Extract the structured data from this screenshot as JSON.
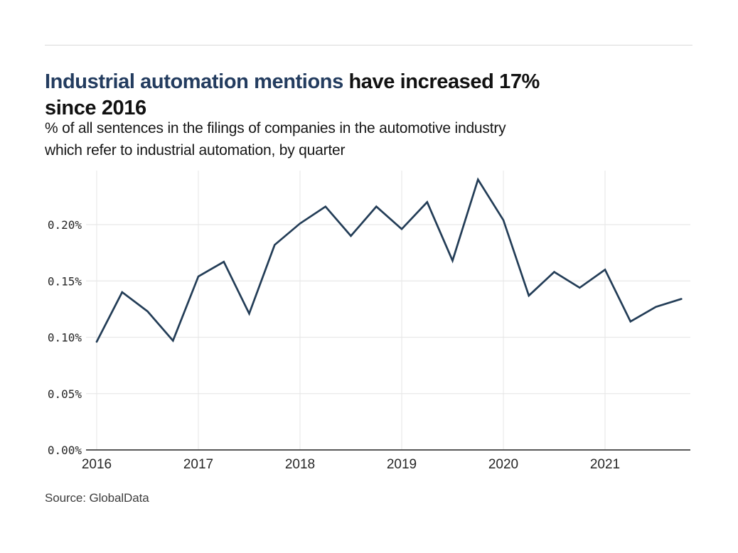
{
  "header": {
    "title_highlight": "Industrial automation mentions",
    "title_rest_line1": " have increased 17%",
    "title_line2": "since 2016",
    "subtitle_line1": "% of all sentences in the filings of companies in the automotive industry",
    "subtitle_line2": "which refer to industrial automation, by quarter"
  },
  "footer": {
    "source": "Source: GlobalData"
  },
  "colors": {
    "title_highlight": "#233c5f",
    "text": "#111111",
    "line": "#233d57",
    "gridline": "#e8e8e8",
    "axis": "#404040",
    "tick_label": "#262626",
    "divider": "#d8d8d8"
  },
  "chart_data": {
    "type": "line",
    "title": "Industrial automation mentions have increased 17% since 2016",
    "subtitle": "% of all sentences in the filings of companies in the automotive industry which refer to industrial automation, by quarter",
    "x": [
      "2016 Q1",
      "2016 Q2",
      "2016 Q3",
      "2016 Q4",
      "2017 Q1",
      "2017 Q2",
      "2017 Q3",
      "2017 Q4",
      "2018 Q1",
      "2018 Q2",
      "2018 Q3",
      "2018 Q4",
      "2019 Q1",
      "2019 Q2",
      "2019 Q3",
      "2019 Q4",
      "2020 Q1",
      "2020 Q2",
      "2020 Q3",
      "2020 Q4",
      "2021 Q1",
      "2021 Q2",
      "2021 Q3",
      "2021 Q4"
    ],
    "values": [
      0.096,
      0.14,
      0.123,
      0.097,
      0.154,
      0.167,
      0.121,
      0.182,
      0.201,
      0.216,
      0.19,
      0.216,
      0.196,
      0.22,
      0.168,
      0.24,
      0.204,
      0.137,
      0.158,
      0.144,
      0.16,
      0.114,
      0.127,
      0.134
    ],
    "unit": "%",
    "xlabel": "",
    "ylabel": "",
    "xtick_labels": [
      "2016",
      "2017",
      "2018",
      "2019",
      "2020",
      "2021"
    ],
    "ytick_values": [
      0,
      0.05,
      0.1,
      0.15,
      0.2
    ],
    "ytick_labels": [
      "0.00%",
      "0.05%",
      "0.10%",
      "0.15%",
      "0.20%"
    ],
    "ylim": [
      0,
      0.248
    ],
    "grid": true,
    "legend_position": "none",
    "line_color": "#233d57",
    "source": "Source: GlobalData"
  }
}
